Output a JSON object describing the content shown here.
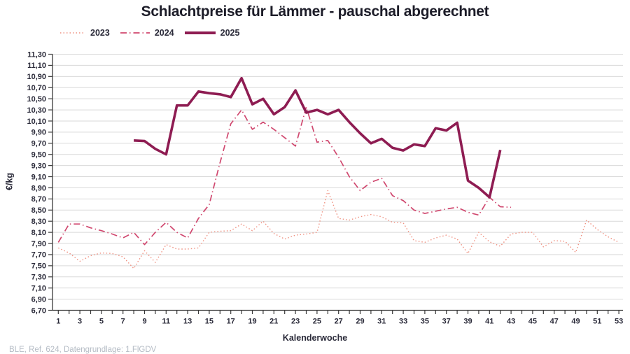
{
  "footer": "BLE, Ref. 624, Datengrundlage: 1.FlGDV",
  "chart_data": {
    "type": "line",
    "title": "Schlachtpreise für Lämmer - pauschal abgerechnet",
    "xlabel": "Kalenderwoche",
    "ylabel": "€/kg",
    "xlim": [
      1,
      53
    ],
    "ylim": [
      6.7,
      11.3
    ],
    "ytick_step": 0.2,
    "ytick_format": "decimal-comma",
    "xticks": [
      1,
      3,
      5,
      7,
      9,
      11,
      13,
      15,
      17,
      19,
      21,
      23,
      25,
      27,
      29,
      31,
      33,
      35,
      37,
      39,
      41,
      43,
      45,
      47,
      49,
      51,
      53
    ],
    "grid": "horizontal",
    "grid_color": "#d9d9d9",
    "axis_color": "#3a3a3a",
    "text_color": "#2b2b3a",
    "legend_position": "top-left",
    "series": [
      {
        "name": "2023",
        "style": "dotted",
        "color": "#ef9181",
        "width": 1.4,
        "start_week": 1,
        "values": [
          7.82,
          7.73,
          7.58,
          7.68,
          7.73,
          7.72,
          7.66,
          7.45,
          7.77,
          7.56,
          7.88,
          7.8,
          7.8,
          7.82,
          8.1,
          8.12,
          8.13,
          8.25,
          8.13,
          8.3,
          8.08,
          7.98,
          8.05,
          8.07,
          8.1,
          8.85,
          8.35,
          8.32,
          8.38,
          8.42,
          8.38,
          8.28,
          8.27,
          7.95,
          7.92,
          8.0,
          8.05,
          7.98,
          7.72,
          8.1,
          7.93,
          7.85,
          8.07,
          8.1,
          8.1,
          7.84,
          7.95,
          7.94,
          7.74,
          8.32,
          8.15,
          8.02,
          7.92
        ]
      },
      {
        "name": "2024",
        "style": "dashdot",
        "color": "#d0486f",
        "width": 1.7,
        "start_week": 1,
        "values": [
          7.92,
          8.25,
          8.25,
          8.18,
          8.13,
          8.07,
          8.0,
          8.1,
          7.88,
          8.1,
          8.28,
          8.1,
          8.0,
          8.35,
          8.6,
          9.35,
          10.05,
          10.3,
          9.95,
          10.08,
          9.95,
          9.8,
          9.65,
          10.35,
          9.72,
          9.75,
          9.45,
          9.1,
          8.85,
          9.0,
          9.07,
          8.76,
          8.67,
          8.5,
          8.44,
          8.48,
          8.52,
          8.55,
          8.46,
          8.41,
          8.73,
          8.56,
          8.55
        ]
      },
      {
        "name": "2025",
        "style": "solid",
        "color": "#8e1c52",
        "width": 3.6,
        "start_week": 8,
        "values": [
          9.75,
          9.74,
          9.6,
          9.5,
          10.38,
          10.38,
          10.63,
          10.6,
          10.58,
          10.53,
          10.87,
          10.4,
          10.5,
          10.22,
          10.35,
          10.65,
          10.25,
          10.3,
          10.22,
          10.3,
          10.08,
          9.88,
          9.7,
          9.78,
          9.62,
          9.57,
          9.68,
          9.65,
          9.97,
          9.93,
          10.07,
          9.03,
          8.9,
          8.73,
          9.58
        ]
      }
    ]
  }
}
